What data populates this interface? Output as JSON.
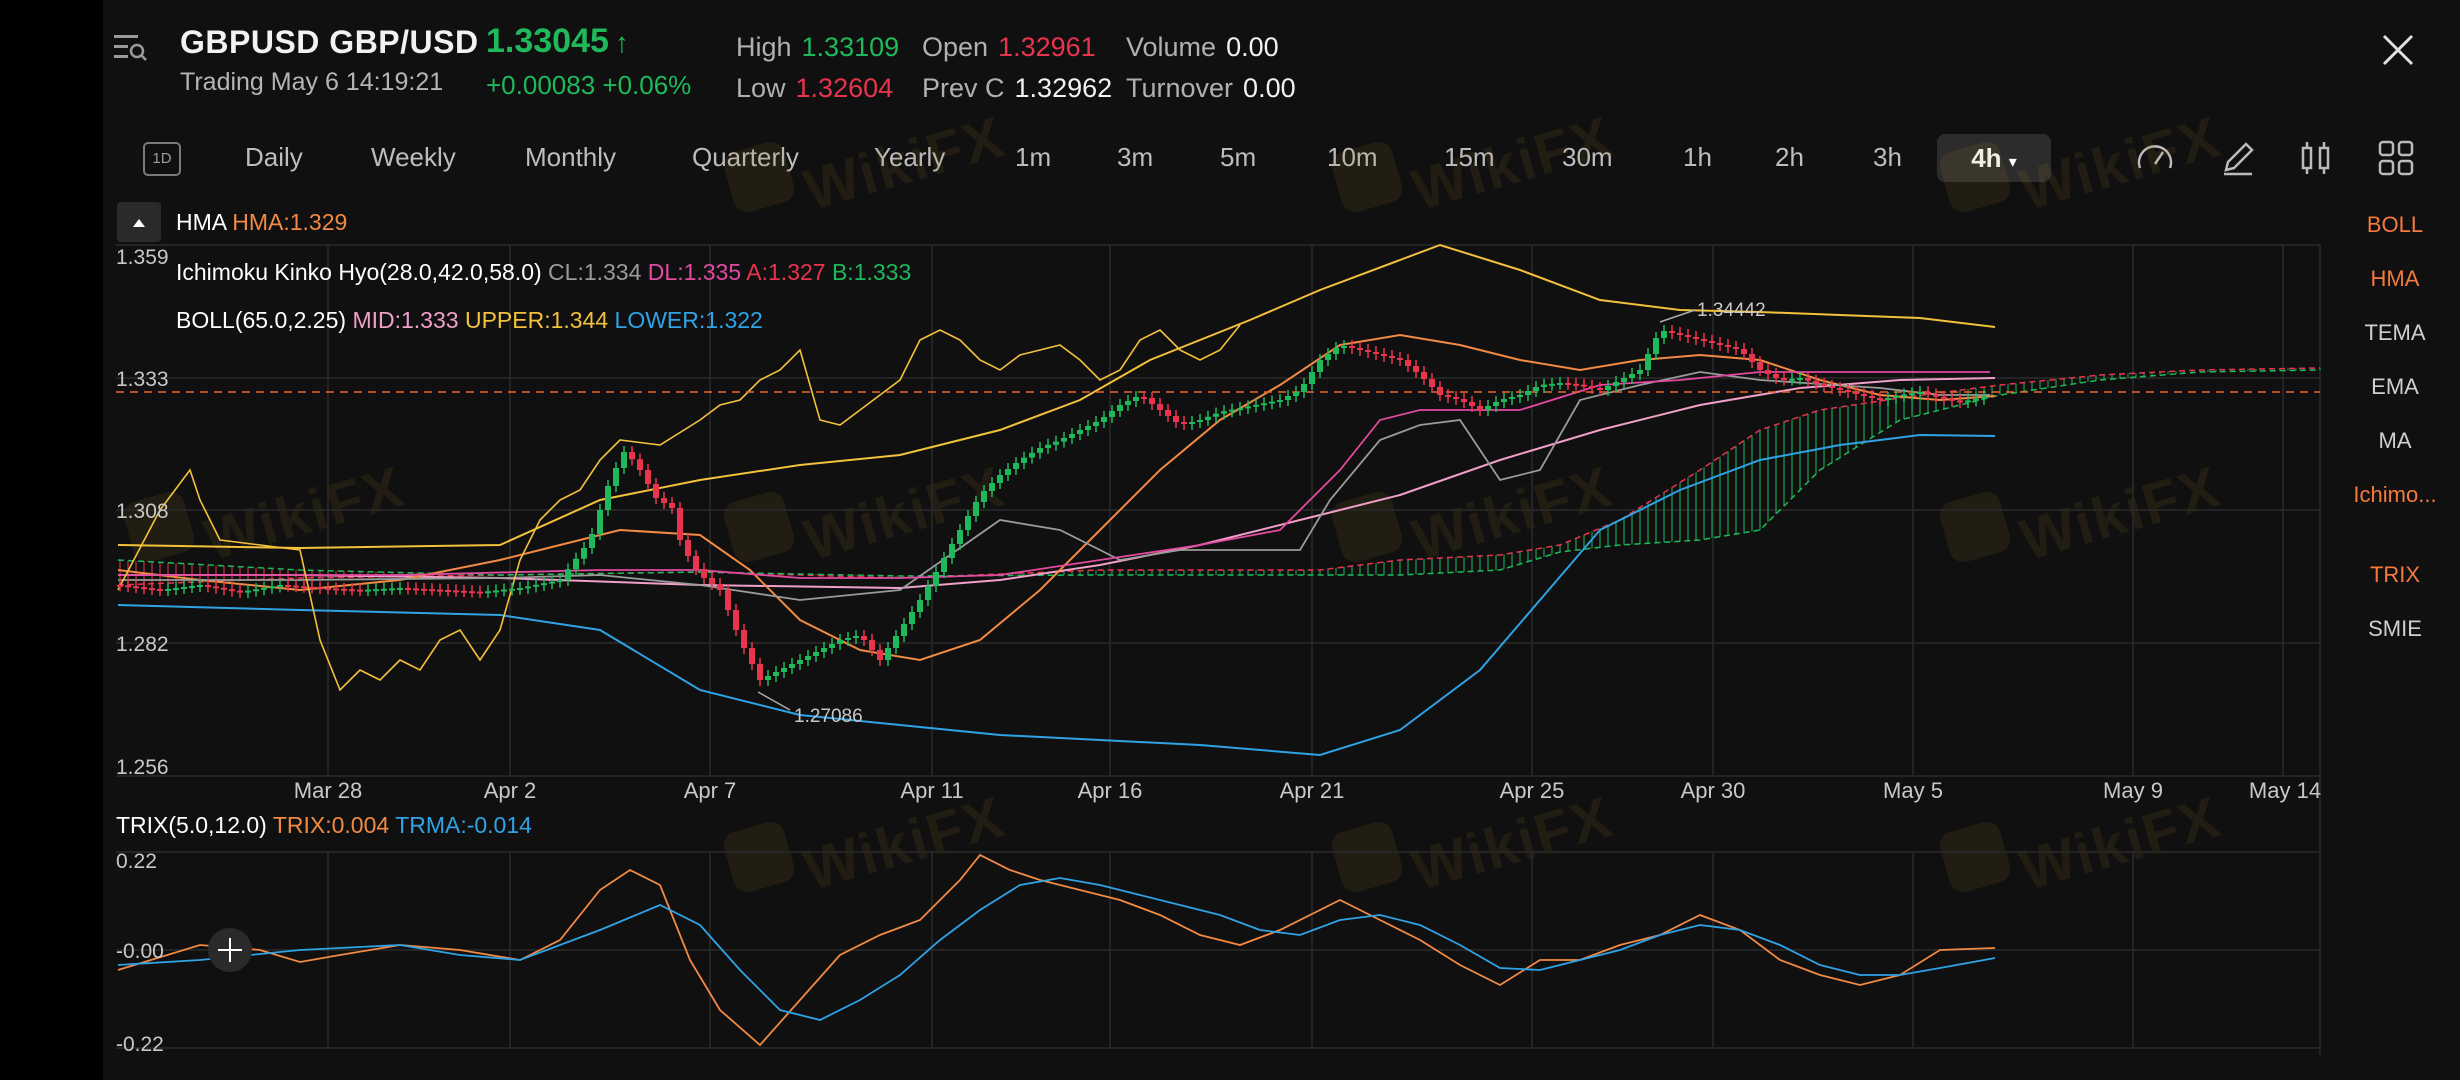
{
  "header": {
    "symbol": "GBPUSD GBP/USD",
    "price": "1.33045",
    "price_arrow": "up-arrow-icon",
    "status": "Trading  May 6 14:19:21",
    "change": "+0.00083 +0.06%",
    "stats": [
      {
        "key": "High",
        "value": "1.33109",
        "color": "green"
      },
      {
        "key": "Low",
        "value": "1.32604",
        "color": "red"
      },
      {
        "key": "Open",
        "value": "1.32961",
        "color": "red"
      },
      {
        "key": "Prev C",
        "value": "1.32962",
        "color": "white"
      },
      {
        "key": "Volume",
        "value": "0.00",
        "color": "white"
      },
      {
        "key": "Turnover",
        "value": "0.00",
        "color": "white"
      }
    ]
  },
  "timeframes": {
    "icon_label": "1D",
    "items": [
      "Daily",
      "Weekly",
      "Monthly",
      "Quarterly",
      "Yearly",
      "1m",
      "3m",
      "5m",
      "10m",
      "15m",
      "30m",
      "1h",
      "2h",
      "3h"
    ],
    "active": "4h"
  },
  "legends": {
    "hma": {
      "name": "HMA",
      "value": "HMA:1.329"
    },
    "ichimoku": {
      "name": "Ichimoku Kinko Hyo(28.0,42.0,58.0)",
      "cl": "CL:1.334",
      "dl": "DL:1.335",
      "a": "A:1.327",
      "b": "B:1.333"
    },
    "boll": {
      "name": "BOLL(65.0,2.25)",
      "mid": "MID:1.333",
      "upper": "UPPER:1.344",
      "lower": "LOWER:1.322"
    },
    "trix": {
      "name": "TRIX(5.0,12.0)",
      "trix": "TRIX:0.004",
      "trma": "TRMA:-0.014"
    }
  },
  "side_indicators": [
    {
      "label": "BOLL",
      "active": true
    },
    {
      "label": "HMA",
      "active": true
    },
    {
      "label": "TEMA",
      "active": false
    },
    {
      "label": "EMA",
      "active": false
    },
    {
      "label": "MA",
      "active": false
    },
    {
      "label": "Ichimo...",
      "active": true
    },
    {
      "label": "TRIX",
      "active": true
    },
    {
      "label": "SMIE",
      "active": false
    }
  ],
  "watermark": "WikiFX",
  "chart_data": [
    {
      "type": "candlestick",
      "yticks": [
        "1.359",
        "1.333",
        "1.308",
        "1.282",
        "1.256"
      ],
      "xticks": [
        "Mar 28",
        "Apr 2",
        "Apr 7",
        "Apr 11",
        "Apr 16",
        "Apr 21",
        "Apr 25",
        "Apr 30",
        "May 5",
        "May 9",
        "May 14"
      ],
      "annotations": {
        "high": "1.34442",
        "low": "1.27086"
      },
      "current_price_line": 1.3305
    },
    {
      "type": "line",
      "yticks": [
        "0.22",
        "-0.00",
        "-0.22"
      ],
      "series": [
        {
          "name": "TRIX",
          "color": "#f28a43"
        },
        {
          "name": "TRMA",
          "color": "#2fa3e6"
        }
      ]
    }
  ]
}
